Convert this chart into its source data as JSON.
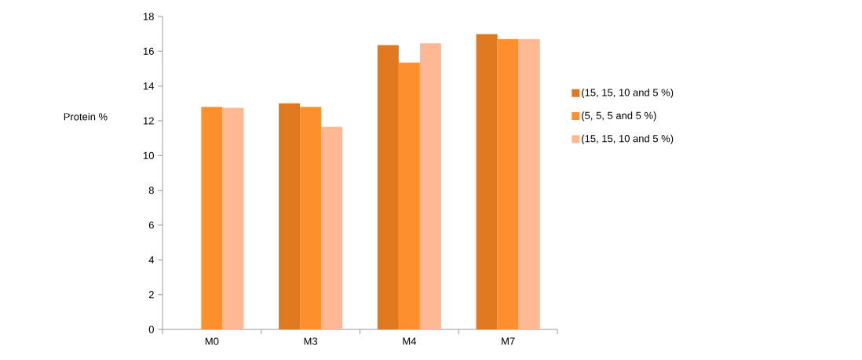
{
  "chart_data": {
    "type": "bar",
    "ylabel": "Protein %",
    "categories": [
      "M0",
      "M3",
      "M4",
      "M7"
    ],
    "series": [
      {
        "name": "(15, 15, 10 and 5 %)",
        "color": "#e07820",
        "values": [
          null,
          13.0,
          16.35,
          17.0
        ]
      },
      {
        "name": "(5, 5, 5 and 5 %)",
        "color": "#fd902c",
        "values": [
          12.8,
          12.8,
          15.35,
          16.7
        ]
      },
      {
        "name": "(15, 15, 10 and 5 %)",
        "color": "#fdb994",
        "values": [
          12.75,
          11.65,
          16.45,
          16.7
        ]
      }
    ],
    "ylim": [
      0,
      18
    ],
    "yticks": [
      0,
      2,
      4,
      6,
      8,
      10,
      12,
      14,
      16,
      18
    ],
    "legend": "right",
    "grid": false
  }
}
